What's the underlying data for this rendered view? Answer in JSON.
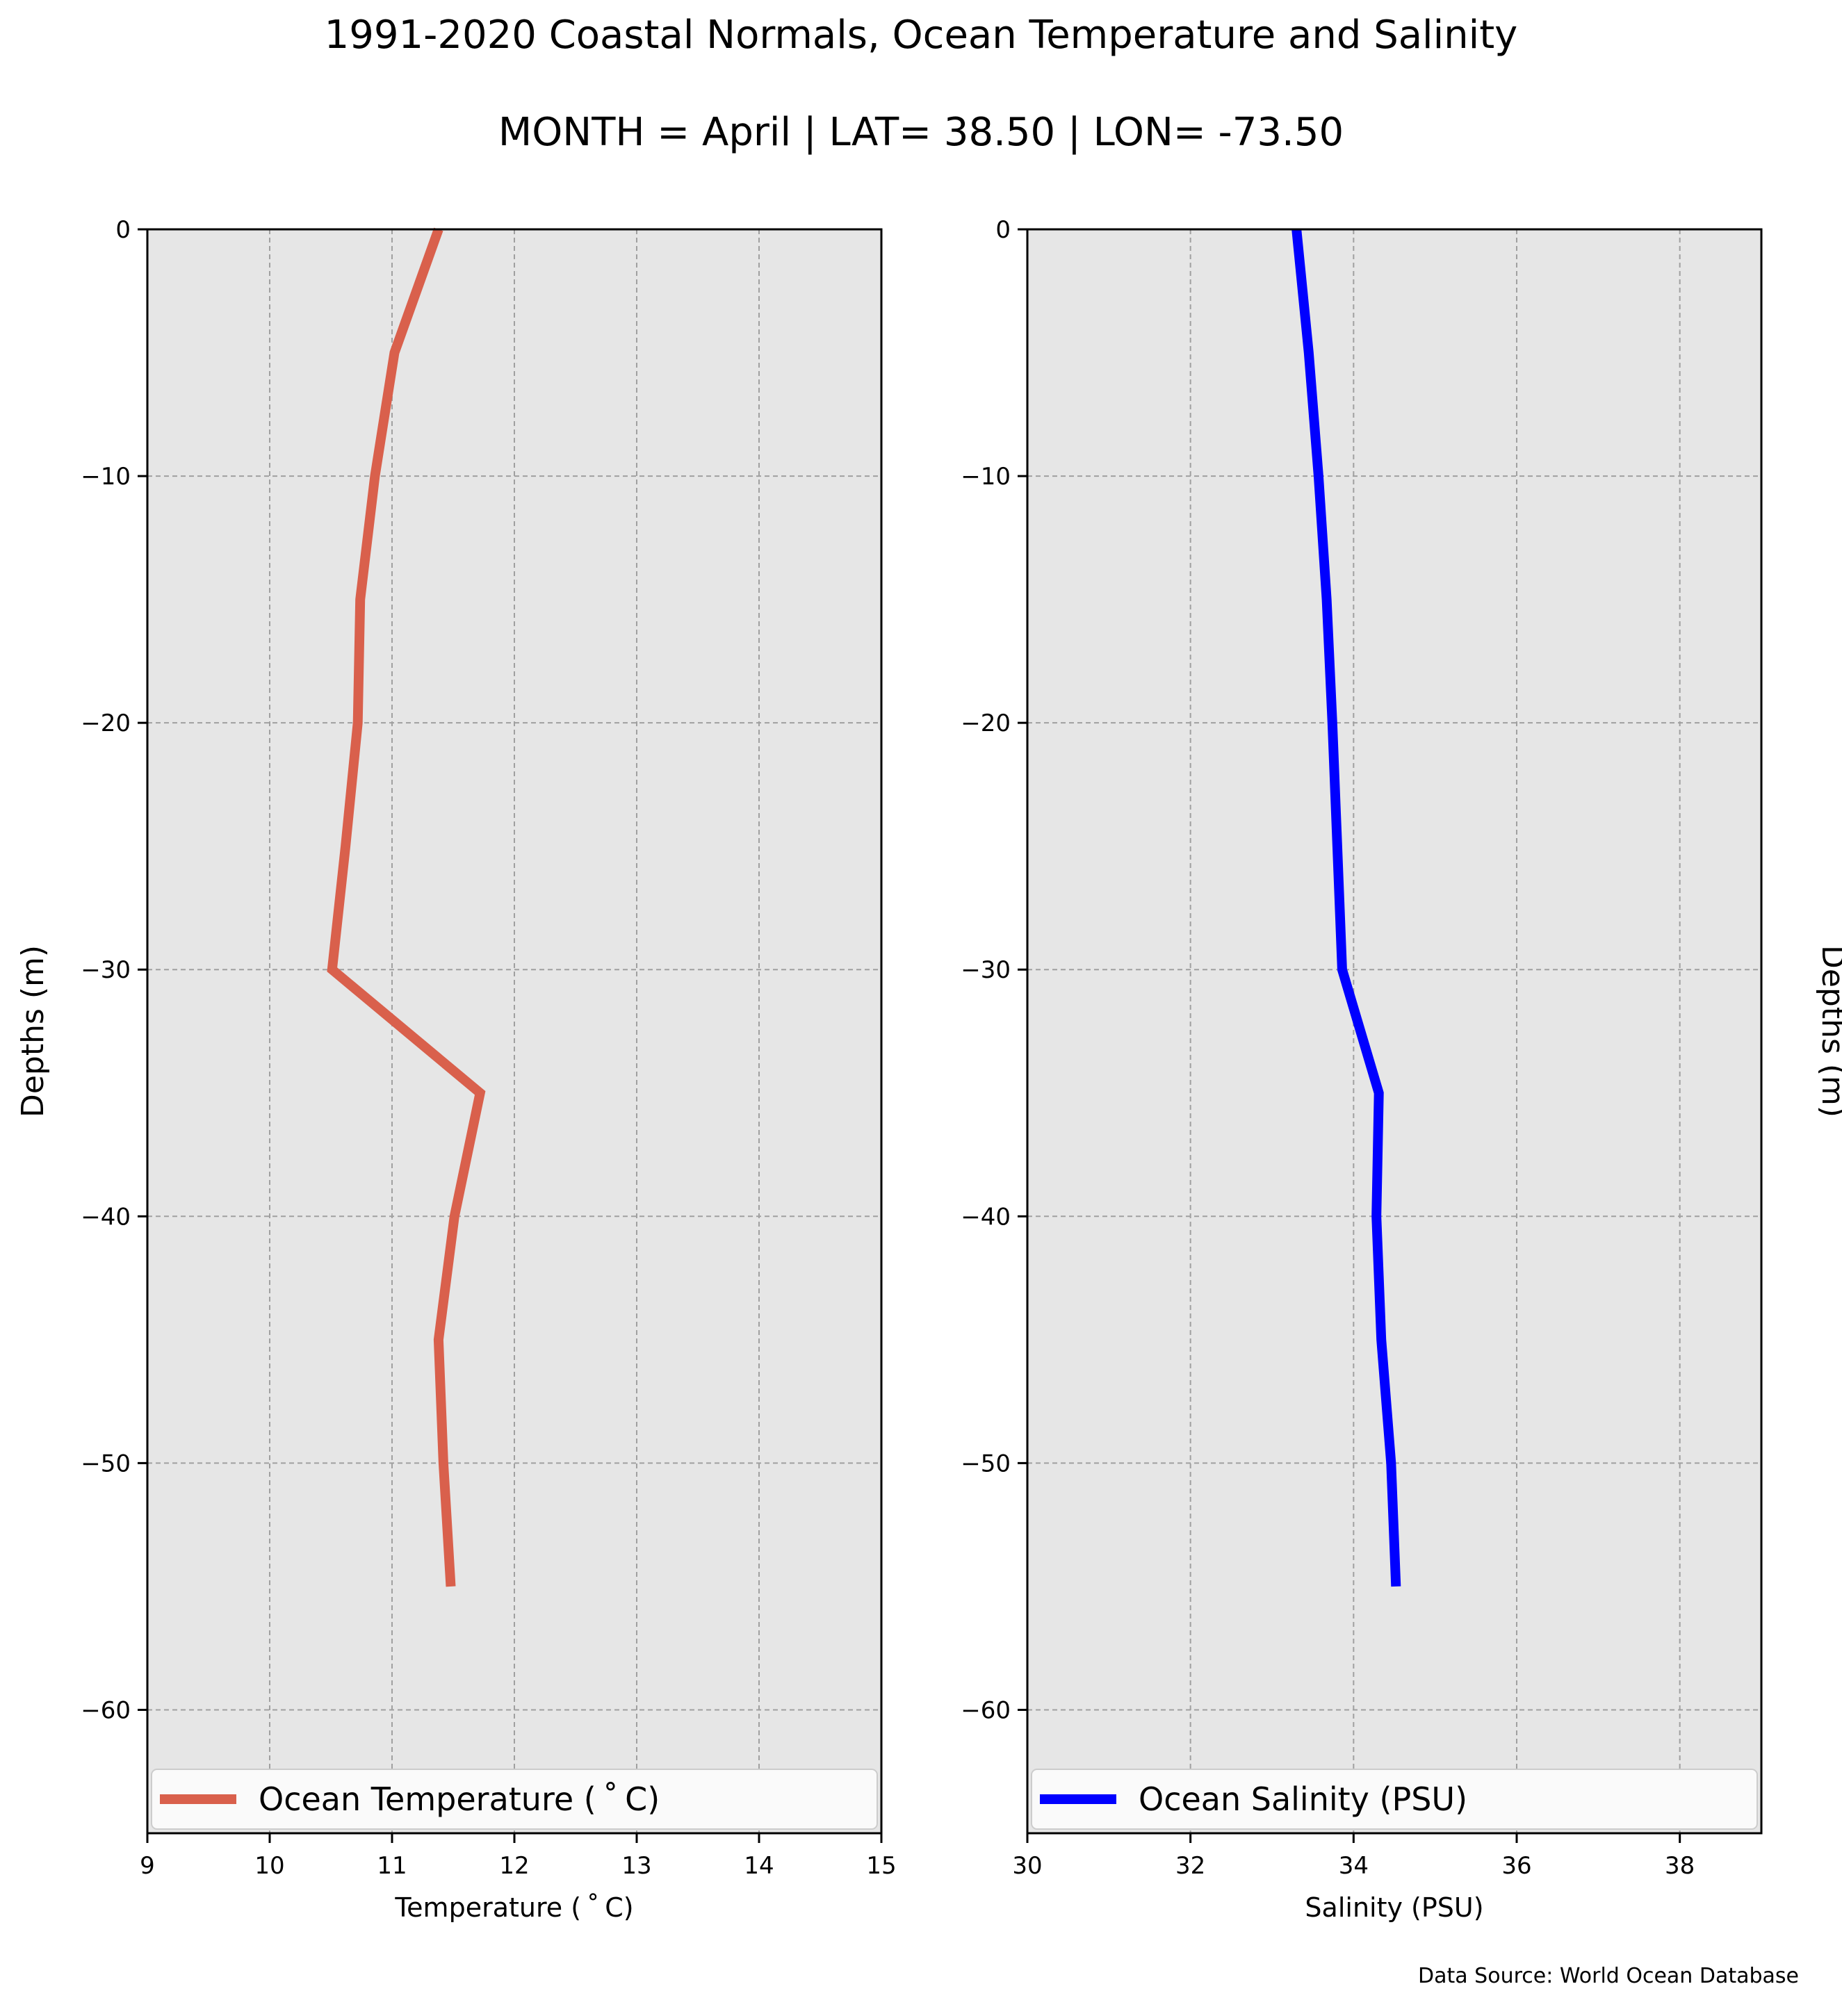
{
  "header": {
    "title": "1991-2020 Coastal Normals, Ocean Temperature and Salinity",
    "subtitle": "MONTH = April | LAT= 38.50 | LON= -73.50"
  },
  "footer": {
    "source": "Data Source: World Ocean Database"
  },
  "colors": {
    "temperature": "#d9604c",
    "salinity": "#0000ff",
    "plot_bg": "#e6e6e6"
  },
  "chart_data": [
    {
      "type": "line",
      "xlabel": "Temperature ($^\\circ$C)",
      "xlabel_display": "Temperature ( ˚ C)",
      "ylabel": "Depths (m)",
      "xlim": [
        9,
        15
      ],
      "ylim": [
        -65,
        0
      ],
      "xticks": [
        9,
        10,
        11,
        12,
        13,
        14,
        15
      ],
      "yticks": [
        0,
        -10,
        -20,
        -30,
        -40,
        -50,
        -60
      ],
      "grid": true,
      "legend_position": "lower center",
      "series": [
        {
          "name": "Ocean Temperature ( ˚ C)",
          "color": "#d9604c",
          "x": [
            11.38,
            11.02,
            10.86,
            10.74,
            10.72,
            10.62,
            10.51,
            11.72,
            11.51,
            11.38,
            11.42,
            11.48
          ],
          "y": [
            0,
            -5,
            -10,
            -15,
            -20,
            -25,
            -30,
            -35,
            -40,
            -45,
            -50,
            -55
          ]
        }
      ]
    },
    {
      "type": "line",
      "xlabel": "Salinity (PSU)",
      "ylabel": "Depths (m)",
      "xlim": [
        30,
        39
      ],
      "ylim": [
        -65,
        0
      ],
      "xticks": [
        30,
        32,
        34,
        36,
        38
      ],
      "yticks": [
        0,
        -10,
        -20,
        -30,
        -40,
        -50,
        -60
      ],
      "grid": true,
      "legend_position": "lower center",
      "ylabel_side": "right",
      "series": [
        {
          "name": "Ocean Salinity (PSU)",
          "color": "#0000ff",
          "x": [
            33.3,
            33.45,
            33.57,
            33.67,
            33.74,
            33.8,
            33.86,
            34.31,
            34.28,
            34.34,
            34.46,
            34.52
          ],
          "y": [
            0,
            -5,
            -10,
            -15,
            -20,
            -25,
            -30,
            -35,
            -40,
            -45,
            -50,
            -55
          ]
        }
      ]
    }
  ]
}
